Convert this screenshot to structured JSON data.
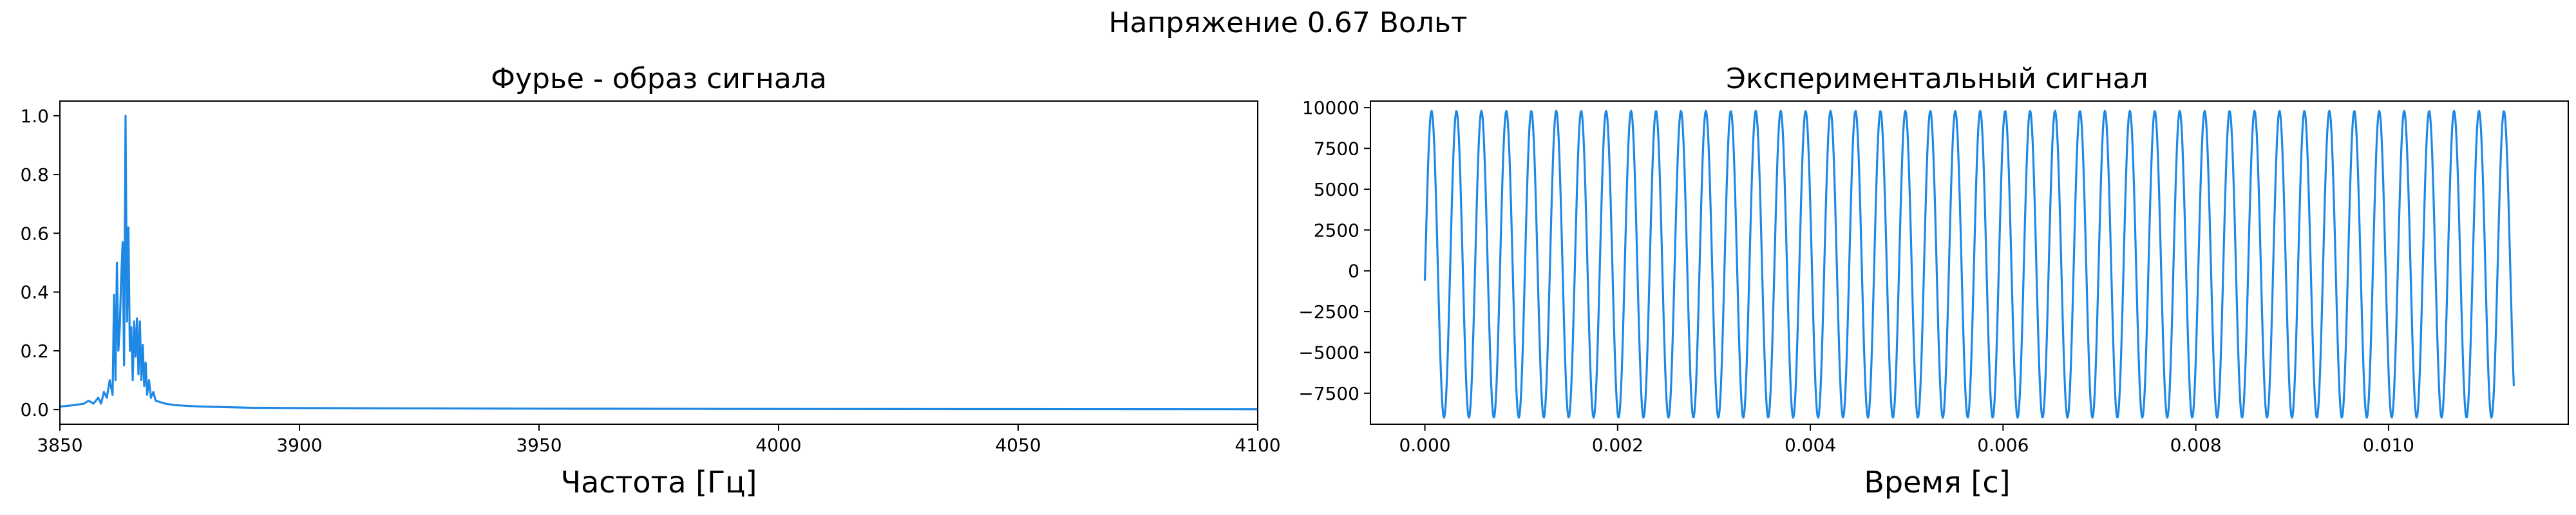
{
  "figure": {
    "suptitle": "Напряжение 0.67 Вольт"
  },
  "colors": {
    "line": "#1e88e5",
    "axes": "#000000",
    "background": "#ffffff"
  },
  "chart_data": [
    {
      "type": "line",
      "title": "Фурье - образ сигнала",
      "xlabel": "Частота [Гц]",
      "ylabel": "",
      "xlim": [
        3850,
        4100
      ],
      "ylim": [
        -0.05,
        1.05
      ],
      "xticks": [
        3850,
        3900,
        3950,
        4000,
        4050,
        4100
      ],
      "xtick_labels": [
        "3850",
        "3900",
        "3950",
        "4000",
        "4050",
        "4100"
      ],
      "yticks": [
        0.0,
        0.2,
        0.4,
        0.6,
        0.8,
        1.0
      ],
      "ytick_labels": [
        "0.0",
        "0.2",
        "0.4",
        "0.6",
        "0.8",
        "1.0"
      ],
      "grid": false,
      "series": [
        {
          "x": [
            3850,
            3853,
            3855,
            3856,
            3857,
            3858,
            3858.6,
            3859.2,
            3859.8,
            3860.4,
            3861,
            3861.3,
            3861.6,
            3861.9,
            3862.2,
            3862.5,
            3862.8,
            3863.1,
            3863.4,
            3863.7,
            3864,
            3864.3,
            3864.6,
            3864.9,
            3865.2,
            3865.5,
            3865.8,
            3866.1,
            3866.4,
            3866.7,
            3867,
            3867.3,
            3867.6,
            3867.9,
            3868.2,
            3868.6,
            3869,
            3869.5,
            3870,
            3871,
            3872,
            3874,
            3877,
            3880,
            3885,
            3890,
            3900,
            3950,
            4000,
            4050,
            4100
          ],
          "y": [
            0.01,
            0.015,
            0.02,
            0.03,
            0.02,
            0.04,
            0.02,
            0.06,
            0.04,
            0.1,
            0.05,
            0.39,
            0.1,
            0.5,
            0.2,
            0.28,
            0.45,
            0.57,
            0.15,
            1.0,
            0.3,
            0.62,
            0.2,
            0.28,
            0.1,
            0.3,
            0.18,
            0.31,
            0.12,
            0.3,
            0.1,
            0.22,
            0.08,
            0.16,
            0.05,
            0.1,
            0.04,
            0.06,
            0.03,
            0.025,
            0.02,
            0.015,
            0.012,
            0.01,
            0.008,
            0.006,
            0.005,
            0.003,
            0.002,
            0.0015,
            0.001
          ]
        }
      ]
    },
    {
      "type": "line",
      "title": "Экспериментальный сигнал",
      "xlabel": "Время [с]",
      "ylabel": "",
      "xlim": [
        -0.000565,
        0.011865
      ],
      "ylim": [
        -9400,
        10400
      ],
      "xticks": [
        0,
        0.002,
        0.004,
        0.006,
        0.008,
        0.01
      ],
      "xtick_labels": [
        "0.000",
        "0.002",
        "0.004",
        "0.006",
        "0.008",
        "0.010"
      ],
      "yticks": [
        -7500,
        -5000,
        -2500,
        0,
        2500,
        5000,
        7500,
        10000
      ],
      "ytick_labels": [
        "−7500",
        "−5000",
        "−2500",
        "0",
        "2500",
        "5000",
        "7500",
        "10000"
      ],
      "grid": false,
      "signal": {
        "t_start": 0,
        "t_end": 0.0113,
        "frequency_hz": 3864,
        "amplitude": 9400,
        "offset": 400,
        "initial_value": -600
      }
    }
  ]
}
